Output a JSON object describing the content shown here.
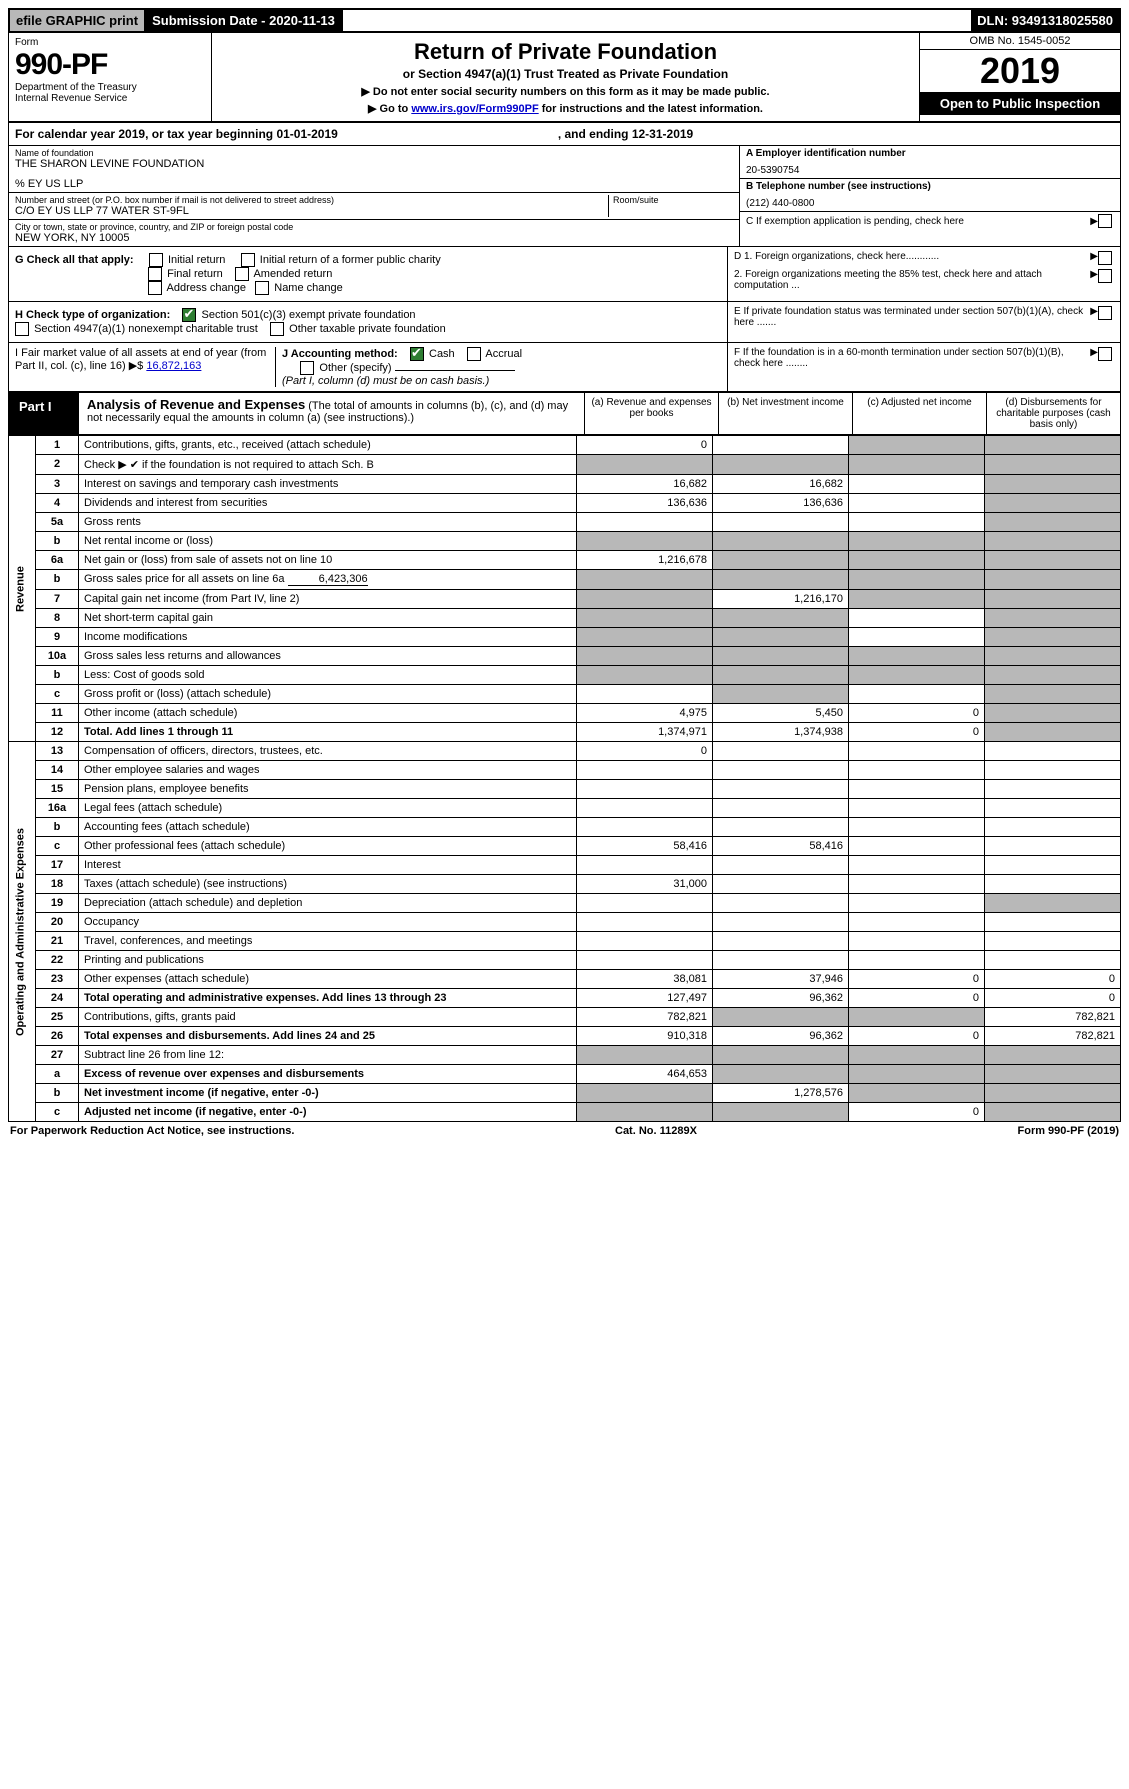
{
  "topbar": {
    "efile": "efile GRAPHIC print",
    "submission": "Submission Date - 2020-11-13",
    "dln": "DLN: 93491318025580"
  },
  "header": {
    "form_label": "Form",
    "form_number": "990-PF",
    "department": "Department of the Treasury",
    "irs": "Internal Revenue Service",
    "title": "Return of Private Foundation",
    "subtitle": "or Section 4947(a)(1) Trust Treated as Private Foundation",
    "note1": "▶ Do not enter social security numbers on this form as it may be made public.",
    "note2_pre": "▶ Go to ",
    "note2_link": "www.irs.gov/Form990PF",
    "note2_post": " for instructions and the latest information.",
    "omb": "OMB No. 1545-0052",
    "year": "2019",
    "open": "Open to Public Inspection"
  },
  "calendar": {
    "label": "For calendar year 2019, or tax year beginning 01-01-2019",
    "ending": ", and ending 12-31-2019"
  },
  "identity": {
    "name_lbl": "Name of foundation",
    "name_val": "THE SHARON LEVINE FOUNDATION",
    "care_of": "% EY US LLP",
    "street_lbl": "Number and street (or P.O. box number if mail is not delivered to street address)",
    "street_val": "C/O EY US LLP 77 WATER ST-9FL",
    "room_lbl": "Room/suite",
    "city_lbl": "City or town, state or province, country, and ZIP or foreign postal code",
    "city_val": "NEW YORK, NY  10005",
    "a_lbl": "A Employer identification number",
    "a_val": "20-5390754",
    "b_lbl": "B Telephone number (see instructions)",
    "b_val": "(212) 440-0800",
    "c_lbl": "C If exemption application is pending, check here"
  },
  "g_section": {
    "lbl": "G Check all that apply:",
    "initial": "Initial return",
    "initial_former": "Initial return of a former public charity",
    "final": "Final return",
    "amended": "Amended return",
    "address": "Address change",
    "name_change": "Name change"
  },
  "h_section": {
    "lbl": "H Check type of organization:",
    "opt1": "Section 501(c)(3) exempt private foundation",
    "opt2": "Section 4947(a)(1) nonexempt charitable trust",
    "opt3": "Other taxable private foundation"
  },
  "d_section": {
    "d1": "D 1. Foreign organizations, check here............",
    "d2": "2. Foreign organizations meeting the 85% test, check here and attach computation ...",
    "e": "E  If private foundation status was terminated under section 507(b)(1)(A), check here .......",
    "f": "F  If the foundation is in a 60-month termination under section 507(b)(1)(B), check here ........"
  },
  "i_section": {
    "lbl": "I Fair market value of all assets at end of year (from Part II, col. (c), line 16) ▶$",
    "val": "16,872,163"
  },
  "j_section": {
    "lbl": "J Accounting method:",
    "cash": "Cash",
    "accrual": "Accrual",
    "other": "Other (specify)",
    "note": "(Part I, column (d) must be on cash basis.)"
  },
  "part1": {
    "label": "Part I",
    "title": "Analysis of Revenue and Expenses",
    "subtitle": " (The total of amounts in columns (b), (c), and (d) may not necessarily equal the amounts in column (a) (see instructions).)",
    "col_a": "(a)   Revenue and expenses per books",
    "col_b": "(b)  Net investment income",
    "col_c": "(c)  Adjusted net income",
    "col_d": "(d)  Disbursements for charitable purposes (cash basis only)"
  },
  "rows": {
    "r1": {
      "num": "1",
      "desc": "Contributions, gifts, grants, etc., received (attach schedule)",
      "a": "0",
      "b": "",
      "c": "",
      "d": "",
      "shade_c": true,
      "shade_d": true
    },
    "r2": {
      "num": "2",
      "desc": "Check ▶ ✔ if the foundation is not required to attach Sch. B",
      "a": "",
      "b": "",
      "c": "",
      "d": "",
      "shade_a": true,
      "shade_b": true,
      "shade_c": true,
      "shade_d": true
    },
    "r3": {
      "num": "3",
      "desc": "Interest on savings and temporary cash investments",
      "a": "16,682",
      "b": "16,682",
      "c": "",
      "d": "",
      "shade_d": true
    },
    "r4": {
      "num": "4",
      "desc": "Dividends and interest from securities",
      "a": "136,636",
      "b": "136,636",
      "c": "",
      "d": "",
      "shade_d": true
    },
    "r5a": {
      "num": "5a",
      "desc": "Gross rents",
      "a": "",
      "b": "",
      "c": "",
      "d": "",
      "shade_d": true
    },
    "r5b": {
      "num": "b",
      "desc": "Net rental income or (loss)",
      "a": "",
      "b": "",
      "c": "",
      "d": "",
      "shade_a": true,
      "shade_b": true,
      "shade_c": true,
      "shade_d": true
    },
    "r6a": {
      "num": "6a",
      "desc": "Net gain or (loss) from sale of assets not on line 10",
      "a": "1,216,678",
      "b": "",
      "c": "",
      "d": "",
      "shade_b": true,
      "shade_c": true,
      "shade_d": true
    },
    "r6b": {
      "num": "b",
      "desc": "Gross sales price for all assets on line 6a",
      "extra": "6,423,306",
      "a": "",
      "b": "",
      "c": "",
      "d": "",
      "shade_a": true,
      "shade_b": true,
      "shade_c": true,
      "shade_d": true
    },
    "r7": {
      "num": "7",
      "desc": "Capital gain net income (from Part IV, line 2)",
      "a": "",
      "b": "1,216,170",
      "c": "",
      "d": "",
      "shade_a": true,
      "shade_c": true,
      "shade_d": true
    },
    "r8": {
      "num": "8",
      "desc": "Net short-term capital gain",
      "a": "",
      "b": "",
      "c": "",
      "d": "",
      "shade_a": true,
      "shade_b": true,
      "shade_d": true
    },
    "r9": {
      "num": "9",
      "desc": "Income modifications",
      "a": "",
      "b": "",
      "c": "",
      "d": "",
      "shade_a": true,
      "shade_b": true,
      "shade_d": true
    },
    "r10a": {
      "num": "10a",
      "desc": "Gross sales less returns and allowances",
      "a": "",
      "b": "",
      "c": "",
      "d": "",
      "shade_a": true,
      "shade_b": true,
      "shade_c": true,
      "shade_d": true
    },
    "r10b": {
      "num": "b",
      "desc": "Less: Cost of goods sold",
      "a": "",
      "b": "",
      "c": "",
      "d": "",
      "shade_a": true,
      "shade_b": true,
      "shade_c": true,
      "shade_d": true
    },
    "r10c": {
      "num": "c",
      "desc": "Gross profit or (loss) (attach schedule)",
      "a": "",
      "b": "",
      "c": "",
      "d": "",
      "shade_b": true,
      "shade_d": true
    },
    "r11": {
      "num": "11",
      "desc": "Other income (attach schedule)",
      "a": "4,975",
      "b": "5,450",
      "c": "0",
      "d": "",
      "shade_d": true
    },
    "r12": {
      "num": "12",
      "desc": "Total. Add lines 1 through 11",
      "a": "1,374,971",
      "b": "1,374,938",
      "c": "0",
      "d": "",
      "shade_d": true,
      "bold": true
    },
    "r13": {
      "num": "13",
      "desc": "Compensation of officers, directors, trustees, etc.",
      "a": "0",
      "b": "",
      "c": "",
      "d": ""
    },
    "r14": {
      "num": "14",
      "desc": "Other employee salaries and wages",
      "a": "",
      "b": "",
      "c": "",
      "d": ""
    },
    "r15": {
      "num": "15",
      "desc": "Pension plans, employee benefits",
      "a": "",
      "b": "",
      "c": "",
      "d": ""
    },
    "r16a": {
      "num": "16a",
      "desc": "Legal fees (attach schedule)",
      "a": "",
      "b": "",
      "c": "",
      "d": ""
    },
    "r16b": {
      "num": "b",
      "desc": "Accounting fees (attach schedule)",
      "a": "",
      "b": "",
      "c": "",
      "d": ""
    },
    "r16c": {
      "num": "c",
      "desc": "Other professional fees (attach schedule)",
      "a": "58,416",
      "b": "58,416",
      "c": "",
      "d": ""
    },
    "r17": {
      "num": "17",
      "desc": "Interest",
      "a": "",
      "b": "",
      "c": "",
      "d": ""
    },
    "r18": {
      "num": "18",
      "desc": "Taxes (attach schedule) (see instructions)",
      "a": "31,000",
      "b": "",
      "c": "",
      "d": ""
    },
    "r19": {
      "num": "19",
      "desc": "Depreciation (attach schedule) and depletion",
      "a": "",
      "b": "",
      "c": "",
      "d": "",
      "shade_d": true
    },
    "r20": {
      "num": "20",
      "desc": "Occupancy",
      "a": "",
      "b": "",
      "c": "",
      "d": ""
    },
    "r21": {
      "num": "21",
      "desc": "Travel, conferences, and meetings",
      "a": "",
      "b": "",
      "c": "",
      "d": ""
    },
    "r22": {
      "num": "22",
      "desc": "Printing and publications",
      "a": "",
      "b": "",
      "c": "",
      "d": ""
    },
    "r23": {
      "num": "23",
      "desc": "Other expenses (attach schedule)",
      "a": "38,081",
      "b": "37,946",
      "c": "0",
      "d": "0"
    },
    "r24": {
      "num": "24",
      "desc": "Total operating and administrative expenses. Add lines 13 through 23",
      "a": "127,497",
      "b": "96,362",
      "c": "0",
      "d": "0",
      "bold": true
    },
    "r25": {
      "num": "25",
      "desc": "Contributions, gifts, grants paid",
      "a": "782,821",
      "b": "",
      "c": "",
      "d": "782,821",
      "shade_b": true,
      "shade_c": true
    },
    "r26": {
      "num": "26",
      "desc": "Total expenses and disbursements. Add lines 24 and 25",
      "a": "910,318",
      "b": "96,362",
      "c": "0",
      "d": "782,821",
      "bold": true
    },
    "r27": {
      "num": "27",
      "desc": "Subtract line 26 from line 12:",
      "a": "",
      "b": "",
      "c": "",
      "d": "",
      "shade_a": true,
      "shade_b": true,
      "shade_c": true,
      "shade_d": true
    },
    "r27a": {
      "num": "a",
      "desc": "Excess of revenue over expenses and disbursements",
      "a": "464,653",
      "b": "",
      "c": "",
      "d": "",
      "shade_b": true,
      "shade_c": true,
      "shade_d": true,
      "bold": true
    },
    "r27b": {
      "num": "b",
      "desc": "Net investment income (if negative, enter -0-)",
      "a": "",
      "b": "1,278,576",
      "c": "",
      "d": "",
      "shade_a": true,
      "shade_c": true,
      "shade_d": true,
      "bold": true
    },
    "r27c": {
      "num": "c",
      "desc": "Adjusted net income (if negative, enter -0-)",
      "a": "",
      "b": "",
      "c": "0",
      "d": "",
      "shade_a": true,
      "shade_b": true,
      "shade_d": true,
      "bold": true
    }
  },
  "side_labels": {
    "revenue": "Revenue",
    "expenses": "Operating and Administrative Expenses"
  },
  "footer": {
    "left": "For Paperwork Reduction Act Notice, see instructions.",
    "mid": "Cat. No. 11289X",
    "right": "Form 990-PF (2019)"
  },
  "colors": {
    "shade": "#b8b8b8",
    "link": "#0000cc",
    "check_green": "#2e7d32"
  }
}
